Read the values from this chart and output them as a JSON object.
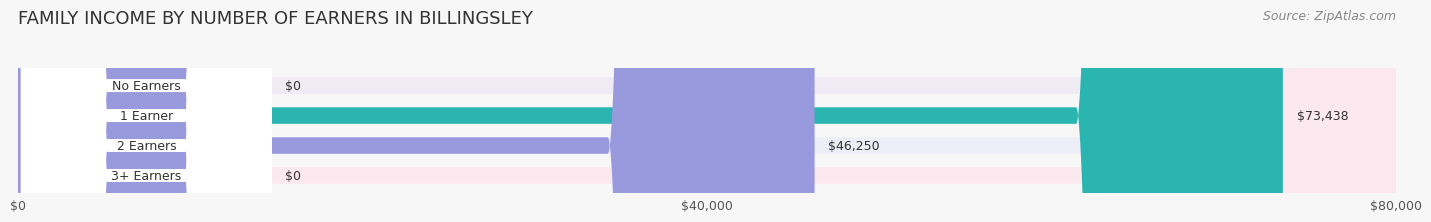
{
  "title": "FAMILY INCOME BY NUMBER OF EARNERS IN BILLINGSLEY",
  "source": "Source: ZipAtlas.com",
  "categories": [
    "No Earners",
    "1 Earner",
    "2 Earners",
    "3+ Earners"
  ],
  "values": [
    0,
    73438,
    46250,
    0
  ],
  "bar_colors": [
    "#c9a0dc",
    "#2ab5b0",
    "#9999dd",
    "#f89ab0"
  ],
  "label_colors": [
    "#7a5a8a",
    "#1a7a76",
    "#6666aa",
    "#c06080"
  ],
  "bg_colors": [
    "#f0eaf4",
    "#e0f5f5",
    "#eeeef8",
    "#fce8ef"
  ],
  "xlim": [
    0,
    80000
  ],
  "xticks": [
    0,
    40000,
    80000
  ],
  "xtick_labels": [
    "$0",
    "$40,000",
    "$80,000"
  ],
  "background_color": "#f7f7f7",
  "bar_height": 0.55,
  "title_fontsize": 13,
  "source_fontsize": 9
}
